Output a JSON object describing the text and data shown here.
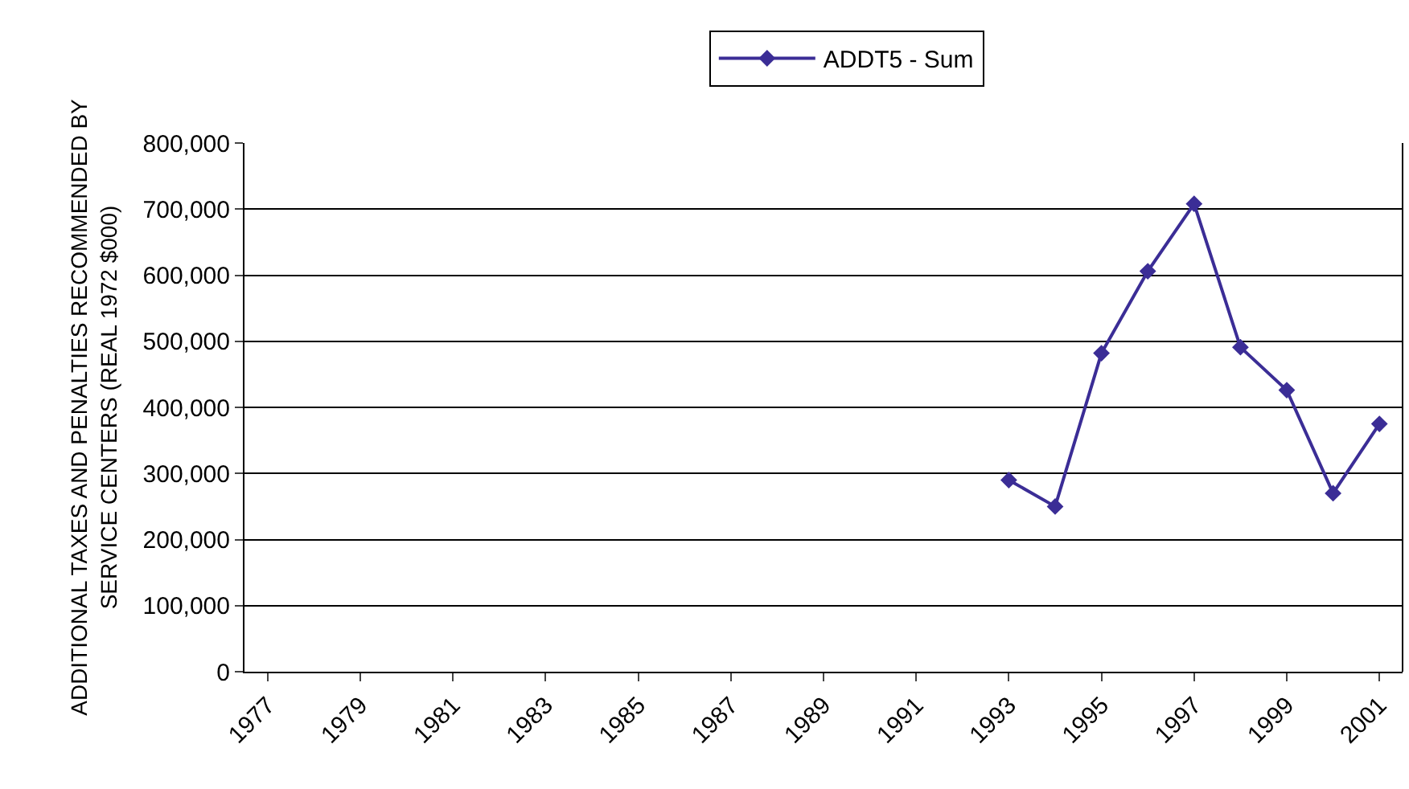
{
  "chart_data": {
    "type": "line",
    "ylabel": "ADDITIONAL TAXES AND PENALTIES RECOMMENDED BY\nSERVICE CENTERS (REAL 1972 $000)",
    "categories": [
      "1977",
      null,
      "1979",
      null,
      "1981",
      null,
      "1983",
      null,
      "1985",
      null,
      "1987",
      null,
      "1989",
      null,
      "1991",
      null,
      "1993",
      null,
      "1995",
      null,
      "1997",
      null,
      "1999",
      null,
      "2001"
    ],
    "series": [
      {
        "name": "ADDT5 - Sum",
        "color": "#3b2d96",
        "values": [
          null,
          null,
          null,
          null,
          null,
          null,
          null,
          null,
          null,
          null,
          null,
          null,
          null,
          null,
          null,
          null,
          290000,
          250000,
          482000,
          606000,
          708000,
          491000,
          426000,
          270000,
          375000
        ]
      }
    ],
    "ylim": [
      0,
      800000
    ],
    "yticks": [
      {
        "value": 0,
        "label": "0"
      },
      {
        "value": 100000,
        "label": "100,000"
      },
      {
        "value": 200000,
        "label": "200,000"
      },
      {
        "value": 300000,
        "label": "300,000"
      },
      {
        "value": 400000,
        "label": "400,000"
      },
      {
        "value": 500000,
        "label": "500,000"
      },
      {
        "value": 600000,
        "label": "600,000"
      },
      {
        "value": 700000,
        "label": "700,000"
      },
      {
        "value": 800000,
        "label": "800,000"
      }
    ],
    "grid": "y",
    "legend": "top",
    "marker": "diamond",
    "line_style": "solid"
  }
}
